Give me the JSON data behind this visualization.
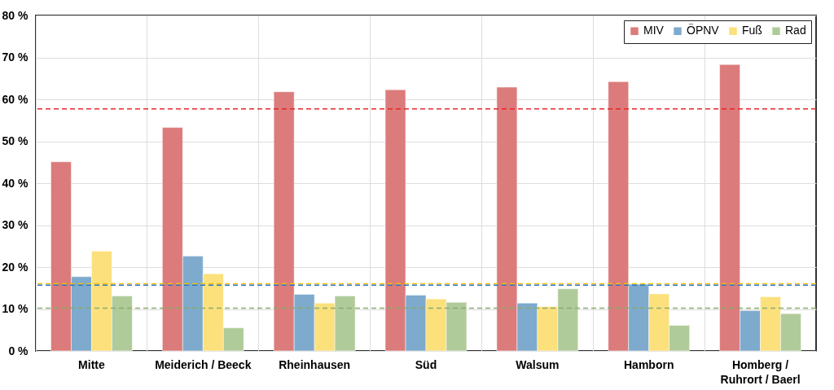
{
  "chart_data": {
    "type": "bar",
    "categories": [
      "Mitte",
      "Meiderich / Beeck",
      "Rheinhausen",
      "Süd",
      "Walsum",
      "Hamborn",
      "Homberg / Ruhrort / Baerl"
    ],
    "series": [
      {
        "name": "MIV",
        "color": "#dc7b7b",
        "values": [
          45.1,
          53.3,
          61.8,
          62.3,
          62.9,
          64.2,
          68.3
        ]
      },
      {
        "name": "ÖPNV",
        "color": "#7eaacd",
        "values": [
          17.7,
          22.6,
          13.5,
          13.3,
          11.4,
          15.9,
          9.6
        ]
      },
      {
        "name": "Fuß",
        "color": "#fbe07c",
        "values": [
          23.8,
          18.4,
          11.4,
          12.4,
          10.6,
          13.6,
          12.9
        ]
      },
      {
        "name": "Rad",
        "color": "#b0cb9a",
        "values": [
          13.1,
          5.5,
          13.1,
          11.6,
          14.8,
          6.1,
          8.9
        ]
      }
    ],
    "ylim": [
      0,
      80
    ],
    "yticks": [
      {
        "value": 0,
        "label": "0 %"
      },
      {
        "value": 10,
        "label": "10 %"
      },
      {
        "value": 20,
        "label": "20 %"
      },
      {
        "value": 30,
        "label": "30 %"
      },
      {
        "value": 40,
        "label": "40 %"
      },
      {
        "value": 50,
        "label": "50 %"
      },
      {
        "value": 60,
        "label": "60 %"
      },
      {
        "value": 70,
        "label": "70 %"
      },
      {
        "value": 80,
        "label": "80 %"
      }
    ],
    "ref_lines": [
      {
        "axis": "y",
        "value": 57.7,
        "color": "#e8262a",
        "line_style": "dashed"
      },
      {
        "axis": "y",
        "value": 16.0,
        "color": "#f5c400",
        "line_style": "dashed"
      },
      {
        "axis": "y",
        "value": 15.7,
        "color": "#2e75c8",
        "line_style": "dashed"
      },
      {
        "axis": "y",
        "value": 10.2,
        "color": "#8aab6e",
        "line_style": "dashed"
      }
    ],
    "grid": true,
    "legend": "top right"
  }
}
